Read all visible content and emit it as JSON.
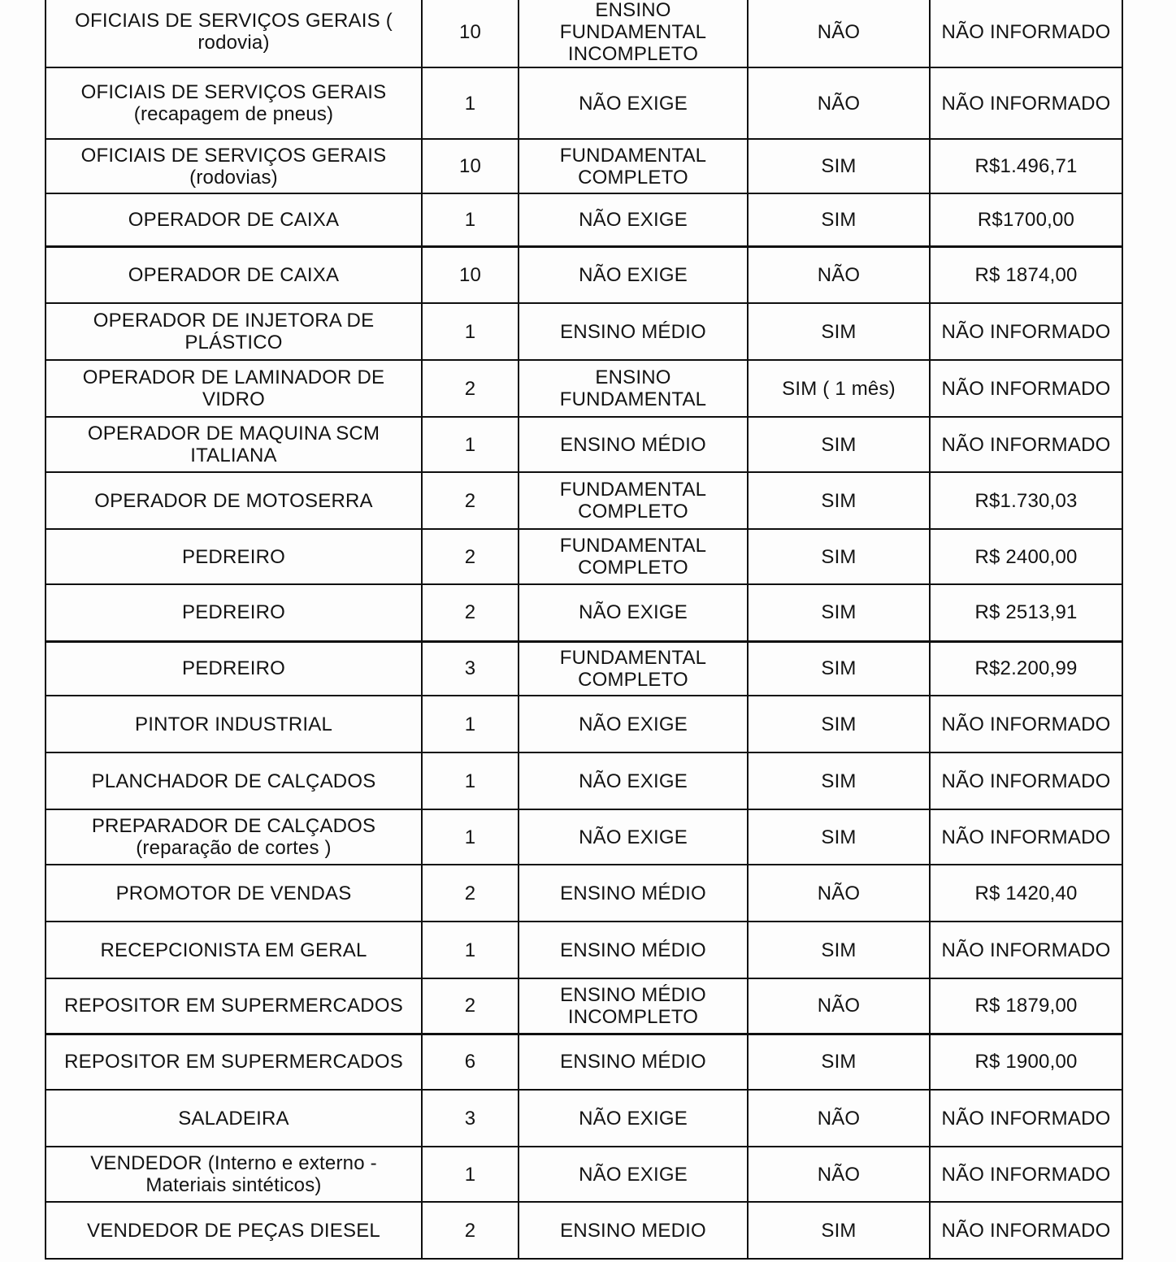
{
  "document": {
    "type": "job-vacancy-table",
    "text_color": "#131313",
    "border_color": "#0f0f0f",
    "background_color": "#fdfdfd"
  },
  "table": {
    "rows": [
      [
        "OFICIAIS DE SERVIÇOS GERAIS (\nrodovia)",
        "10",
        "ENSINO\nFUNDAMENTAL\nINCOMPLETO",
        "NÃO",
        "NÃO INFORMADO"
      ],
      [
        "OFICIAIS DE SERVIÇOS GERAIS\n(recapagem de pneus)",
        "1",
        "NÃO EXIGE",
        "NÃO",
        "NÃO INFORMADO"
      ],
      [
        "OFICIAIS DE SERVIÇOS GERAIS\n(rodovias)",
        "10",
        "FUNDAMENTAL\nCOMPLETO",
        "SIM",
        "R$1.496,71"
      ],
      [
        "OPERADOR DE CAIXA",
        "1",
        "NÃO EXIGE",
        "SIM",
        "R$1700,00"
      ],
      [
        "OPERADOR DE CAIXA",
        "10",
        "NÃO EXIGE",
        "NÃO",
        "R$ 1874,00"
      ],
      [
        "OPERADOR DE INJETORA DE\nPLÁSTICO",
        "1",
        "ENSINO MÉDIO",
        "SIM",
        "NÃO INFORMADO"
      ],
      [
        "OPERADOR DE LAMINADOR DE\nVIDRO",
        "2",
        "ENSINO\nFUNDAMENTAL",
        "SIM ( 1 mês)",
        "NÃO INFORMADO"
      ],
      [
        "OPERADOR DE MAQUINA SCM\nITALIANA",
        "1",
        "ENSINO MÉDIO",
        "SIM",
        "NÃO INFORMADO"
      ],
      [
        "OPERADOR DE MOTOSERRA",
        "2",
        "FUNDAMENTAL\nCOMPLETO",
        "SIM",
        "R$1.730,03"
      ],
      [
        "PEDREIRO",
        "2",
        "FUNDAMENTAL\nCOMPLETO",
        "SIM",
        "R$ 2400,00"
      ],
      [
        "PEDREIRO",
        "2",
        "NÃO EXIGE",
        "SIM",
        "R$ 2513,91"
      ],
      [
        "PEDREIRO",
        "3",
        "FUNDAMENTAL\nCOMPLETO",
        "SIM",
        "R$2.200,99"
      ],
      [
        "PINTOR INDUSTRIAL",
        "1",
        "NÃO EXIGE",
        "SIM",
        "NÃO INFORMADO"
      ],
      [
        "PLANCHADOR DE CALÇADOS",
        "1",
        "NÃO EXIGE",
        "SIM",
        "NÃO INFORMADO"
      ],
      [
        "PREPARADOR DE CALÇADOS\n(reparação de cortes )",
        "1",
        "NÃO EXIGE",
        "SIM",
        "NÃO INFORMADO"
      ],
      [
        "PROMOTOR DE VENDAS",
        "2",
        "ENSINO MÉDIO",
        "NÃO",
        "R$ 1420,40"
      ],
      [
        "RECEPCIONISTA EM GERAL",
        "1",
        "ENSINO MÉDIO",
        "SIM",
        "NÃO INFORMADO"
      ],
      [
        "REPOSITOR EM SUPERMERCADOS",
        "2",
        "ENSINO MÉDIO\nINCOMPLETO",
        "NÃO",
        "R$ 1879,00"
      ],
      [
        "REPOSITOR EM SUPERMERCADOS",
        "6",
        "ENSINO MÉDIO",
        "SIM",
        "R$ 1900,00"
      ],
      [
        "SALADEIRA",
        "3",
        "NÃO EXIGE",
        "NÃO",
        "NÃO INFORMADO"
      ],
      [
        "VENDEDOR (Interno e externo -\nMateriais sintéticos)",
        "1",
        "NÃO EXIGE",
        "NÃO",
        "NÃO INFORMADO"
      ],
      [
        "VENDEDOR DE PEÇAS DIESEL",
        "2",
        "ENSINO MEDIO",
        "SIM",
        "NÃO INFORMADO"
      ]
    ]
  }
}
